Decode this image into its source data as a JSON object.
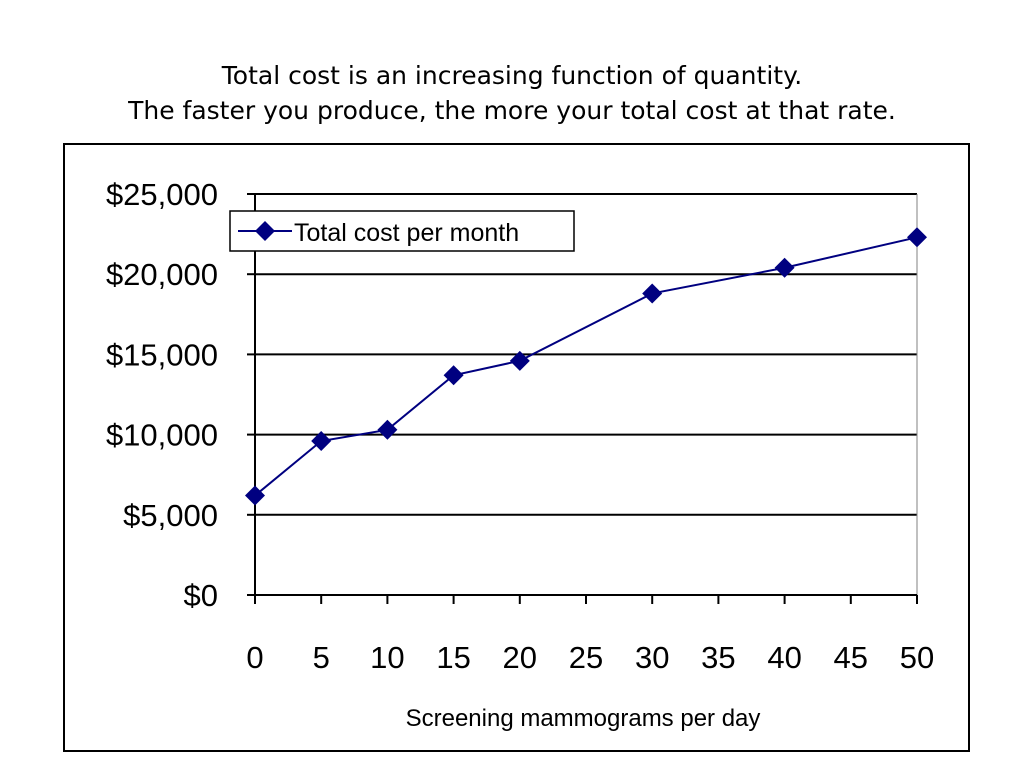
{
  "title": {
    "line1": "Total cost is an increasing function of quantity.",
    "line2": "The faster you produce, the more your total cost at that rate."
  },
  "chart_data": {
    "type": "line",
    "xlabel": "Screening mammograms per day",
    "ylabel": "",
    "xlim": [
      0,
      50
    ],
    "ylim": [
      0,
      25000
    ],
    "x_ticks": [
      0,
      5,
      10,
      15,
      20,
      25,
      30,
      35,
      40,
      45,
      50
    ],
    "x_tick_labels": [
      "0",
      "5",
      "10",
      "15",
      "20",
      "25",
      "30",
      "35",
      "40",
      "45",
      "50"
    ],
    "y_ticks": [
      0,
      5000,
      10000,
      15000,
      20000,
      25000
    ],
    "y_tick_labels": [
      "$0",
      "$5,000",
      "$10,000",
      "$15,000",
      "$20,000",
      "$25,000"
    ],
    "grid": "horizontal major gridlines",
    "legend": "top-left",
    "series": [
      {
        "name": "Total cost per month",
        "marker": "diamond",
        "color": "#000080",
        "x": [
          0,
          5,
          10,
          15,
          20,
          30,
          40,
          50
        ],
        "y": [
          6200,
          9600,
          10300,
          13700,
          14600,
          18800,
          20400,
          22300
        ]
      }
    ]
  }
}
